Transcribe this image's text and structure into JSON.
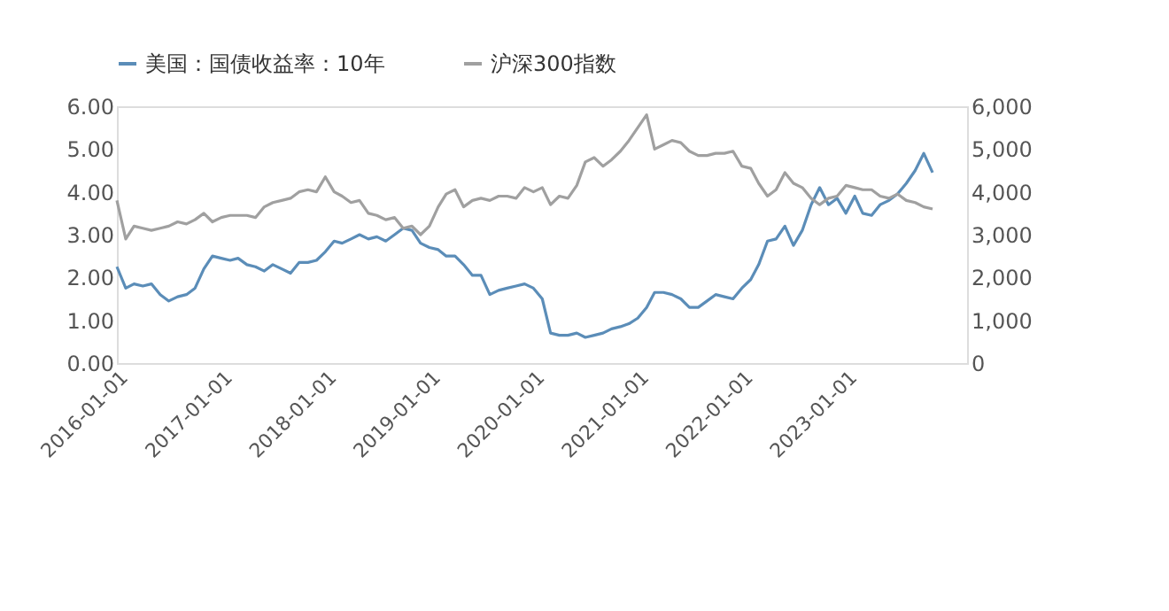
{
  "chart_data": {
    "type": "line",
    "x": [
      "2016-01",
      "2016-02",
      "2016-03",
      "2016-04",
      "2016-05",
      "2016-06",
      "2016-07",
      "2016-08",
      "2016-09",
      "2016-10",
      "2016-11",
      "2016-12",
      "2017-01",
      "2017-02",
      "2017-03",
      "2017-04",
      "2017-05",
      "2017-06",
      "2017-07",
      "2017-08",
      "2017-09",
      "2017-10",
      "2017-11",
      "2017-12",
      "2018-01",
      "2018-02",
      "2018-03",
      "2018-04",
      "2018-05",
      "2018-06",
      "2018-07",
      "2018-08",
      "2018-09",
      "2018-10",
      "2018-11",
      "2018-12",
      "2019-01",
      "2019-02",
      "2019-03",
      "2019-04",
      "2019-05",
      "2019-06",
      "2019-07",
      "2019-08",
      "2019-09",
      "2019-10",
      "2019-11",
      "2019-12",
      "2020-01",
      "2020-02",
      "2020-03",
      "2020-04",
      "2020-05",
      "2020-06",
      "2020-07",
      "2020-08",
      "2020-09",
      "2020-10",
      "2020-11",
      "2020-12",
      "2021-01",
      "2021-02",
      "2021-03",
      "2021-04",
      "2021-05",
      "2021-06",
      "2021-07",
      "2021-08",
      "2021-09",
      "2021-10",
      "2021-11",
      "2021-12",
      "2022-01",
      "2022-02",
      "2022-03",
      "2022-04",
      "2022-05",
      "2022-06",
      "2022-07",
      "2022-08",
      "2022-09",
      "2022-10",
      "2022-11",
      "2022-12",
      "2023-01",
      "2023-02",
      "2023-03",
      "2023-04",
      "2023-05",
      "2023-06",
      "2023-07",
      "2023-08",
      "2023-09",
      "2023-10",
      "2023-11"
    ],
    "series": [
      {
        "name": "美国：国债收益率：10年",
        "color": "#5b8db8",
        "values": [
          2.25,
          1.75,
          1.85,
          1.8,
          1.85,
          1.6,
          1.45,
          1.55,
          1.6,
          1.75,
          2.2,
          2.5,
          2.45,
          2.4,
          2.45,
          2.3,
          2.25,
          2.15,
          2.3,
          2.2,
          2.1,
          2.35,
          2.35,
          2.4,
          2.6,
          2.85,
          2.8,
          2.9,
          3.0,
          2.9,
          2.95,
          2.85,
          3.0,
          3.15,
          3.1,
          2.8,
          2.7,
          2.65,
          2.5,
          2.5,
          2.3,
          2.05,
          2.05,
          1.6,
          1.7,
          1.75,
          1.8,
          1.85,
          1.75,
          1.5,
          0.7,
          0.65,
          0.65,
          0.7,
          0.6,
          0.65,
          0.7,
          0.8,
          0.85,
          0.92,
          1.05,
          1.3,
          1.65,
          1.65,
          1.6,
          1.5,
          1.3,
          1.3,
          1.45,
          1.6,
          1.55,
          1.5,
          1.75,
          1.95,
          2.3,
          2.85,
          2.9,
          3.2,
          2.75,
          3.1,
          3.7,
          4.1,
          3.7,
          3.85,
          3.5,
          3.9,
          3.5,
          3.45,
          3.7,
          3.8,
          3.95,
          4.2,
          4.5,
          4.9,
          4.45
        ]
      },
      {
        "name": "沪深300指数",
        "color": "#a0a0a0",
        "axis": "y2",
        "values": [
          3800,
          2900,
          3200,
          3150,
          3100,
          3150,
          3200,
          3300,
          3250,
          3350,
          3500,
          3300,
          3400,
          3450,
          3450,
          3450,
          3400,
          3650,
          3750,
          3800,
          3850,
          4000,
          4050,
          4000,
          4350,
          4000,
          3900,
          3750,
          3800,
          3500,
          3450,
          3350,
          3400,
          3150,
          3200,
          3000,
          3200,
          3650,
          3950,
          4050,
          3650,
          3800,
          3850,
          3800,
          3900,
          3900,
          3850,
          4100,
          4000,
          4100,
          3700,
          3900,
          3850,
          4150,
          4700,
          4800,
          4600,
          4750,
          4950,
          5200,
          5500,
          5800,
          5000,
          5100,
          5200,
          5150,
          4950,
          4850,
          4850,
          4900,
          4900,
          4950,
          4600,
          4550,
          4200,
          3900,
          4050,
          4450,
          4200,
          4100,
          3850,
          3700,
          3850,
          3900,
          4150,
          4100,
          4050,
          4050,
          3900,
          3850,
          3950,
          3800,
          3750,
          3650,
          3600
        ]
      }
    ],
    "xlim": [
      "2016-01-01",
      "2024-03-01"
    ],
    "xticks": [
      {
        "value": "2016-01-01",
        "label": "2016-01-01"
      },
      {
        "value": "2017-01-01",
        "label": "2017-01-01"
      },
      {
        "value": "2018-01-01",
        "label": "2018-01-01"
      },
      {
        "value": "2019-01-01",
        "label": "2019-01-01"
      },
      {
        "value": "2020-01-01",
        "label": "2020-01-01"
      },
      {
        "value": "2021-01-01",
        "label": "2021-01-01"
      },
      {
        "value": "2022-01-01",
        "label": "2022-01-01"
      },
      {
        "value": "2023-01-01",
        "label": "2023-01-01"
      }
    ],
    "ylim": [
      0,
      6
    ],
    "yticks": [
      {
        "value": 0,
        "label": "0.00"
      },
      {
        "value": 1,
        "label": "1.00"
      },
      {
        "value": 2,
        "label": "2.00"
      },
      {
        "value": 3,
        "label": "3.00"
      },
      {
        "value": 4,
        "label": "4.00"
      },
      {
        "value": 5,
        "label": "5.00"
      },
      {
        "value": 6,
        "label": "6.00"
      }
    ],
    "y2lim": [
      0,
      6000
    ],
    "y2ticks": [
      {
        "value": 0,
        "label": "0"
      },
      {
        "value": 1000,
        "label": "1,000"
      },
      {
        "value": 2000,
        "label": "2,000"
      },
      {
        "value": 3000,
        "label": "3,000"
      },
      {
        "value": 4000,
        "label": "4,000"
      },
      {
        "value": 5000,
        "label": "5,000"
      },
      {
        "value": 6000,
        "label": "6,000"
      }
    ],
    "grid": false,
    "legend": "top",
    "line_style": "solid",
    "marker": "none"
  }
}
